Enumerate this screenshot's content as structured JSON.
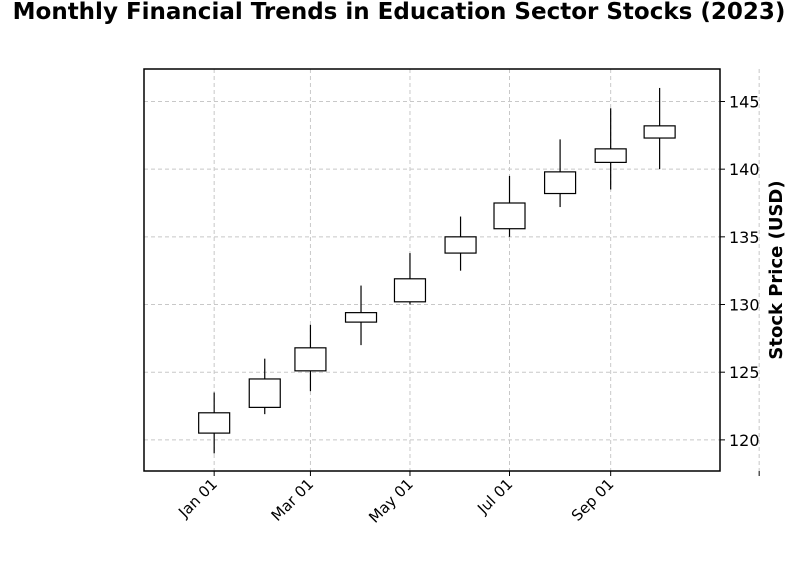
{
  "chart_data": {
    "type": "candlestick",
    "title": "Monthly Financial Trends in Education Sector Stocks (2023)",
    "xlabel": "",
    "ylabel": "Stock Price (USD)",
    "ylim": [
      117.7,
      147.4
    ],
    "y_ticks": [
      120,
      125,
      130,
      135,
      140,
      145
    ],
    "x_tick_labels": [
      "Jan 01",
      "Mar 01",
      "May 01",
      "Jul 01",
      "Sep 01"
    ],
    "grid": true,
    "y_axis_position": "right",
    "up_color": "#ffffff",
    "down_color": "#000000",
    "series": [
      {
        "date": "2023-01",
        "open": 120.5,
        "high": 123.5,
        "low": 119.0,
        "close": 122.0
      },
      {
        "date": "2023-02",
        "open": 122.4,
        "high": 126.0,
        "low": 121.9,
        "close": 124.5
      },
      {
        "date": "2023-03",
        "open": 125.1,
        "high": 128.5,
        "low": 123.6,
        "close": 126.8
      },
      {
        "date": "2023-04",
        "open": 128.7,
        "high": 131.4,
        "low": 127.0,
        "close": 129.4
      },
      {
        "date": "2023-05",
        "open": 130.2,
        "high": 133.8,
        "low": 130.0,
        "close": 131.9
      },
      {
        "date": "2023-06",
        "open": 133.8,
        "high": 136.5,
        "low": 132.5,
        "close": 135.0
      },
      {
        "date": "2023-07",
        "open": 135.6,
        "high": 139.5,
        "low": 135.0,
        "close": 137.5
      },
      {
        "date": "2023-08",
        "open": 138.2,
        "high": 142.2,
        "low": 137.2,
        "close": 139.8
      },
      {
        "date": "2023-09",
        "open": 140.5,
        "high": 144.5,
        "low": 138.5,
        "close": 141.5
      },
      {
        "date": "2023-10",
        "open": 142.3,
        "high": 146.0,
        "low": 140.0,
        "close": 143.2
      }
    ]
  }
}
